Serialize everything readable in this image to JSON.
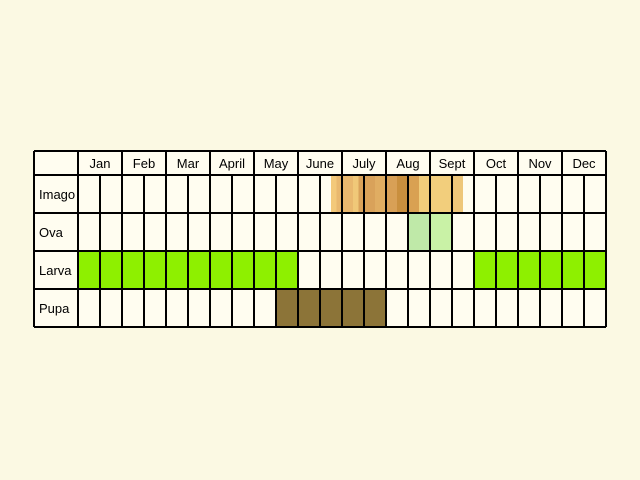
{
  "chart_data": {
    "type": "table",
    "months": [
      "Jan",
      "Feb",
      "Mar",
      "April",
      "May",
      "June",
      "July",
      "Aug",
      "Sept",
      "Oct",
      "Nov",
      "Dec"
    ],
    "half_month_columns": 24,
    "stages": [
      {
        "name": "Imago",
        "segments": [
          {
            "from": 11.5,
            "to": 11.75,
            "color": "#f3c97a"
          },
          {
            "from": 11.75,
            "to": 12.5,
            "color": "#e9b86e"
          },
          {
            "from": 12.5,
            "to": 12.75,
            "color": "#f0c878"
          },
          {
            "from": 12.75,
            "to": 13.5,
            "color": "#d9a25a"
          },
          {
            "from": 13.5,
            "to": 14.0,
            "color": "#e0ad62"
          },
          {
            "from": 14.0,
            "to": 14.5,
            "color": "#d8a056"
          },
          {
            "from": 14.5,
            "to": 15.0,
            "color": "#c98f3e"
          },
          {
            "from": 15.0,
            "to": 15.5,
            "color": "#d9a152"
          },
          {
            "from": 15.5,
            "to": 16.0,
            "color": "#f1cd7a"
          },
          {
            "from": 16.0,
            "to": 17.0,
            "color": "#f2ce7c"
          },
          {
            "from": 17.0,
            "to": 17.5,
            "color": "#eec77a"
          }
        ]
      },
      {
        "name": "Ova",
        "segments": [
          {
            "from": 15.0,
            "to": 16.0,
            "color": "#bfe9a8"
          },
          {
            "from": 16.0,
            "to": 17.0,
            "color": "#c9f2a6"
          }
        ]
      },
      {
        "name": "Larva",
        "segments": [
          {
            "from": 0,
            "to": 10.0,
            "color": "#8ef000"
          },
          {
            "from": 18.0,
            "to": 24.0,
            "color": "#8ef000"
          }
        ]
      },
      {
        "name": "Pupa",
        "segments": [
          {
            "from": 9.0,
            "to": 14.0,
            "color": "#8c7438"
          }
        ]
      }
    ],
    "colors": {
      "background": "#fbf9e3",
      "cell": "#fffdf0",
      "grid": "#000000"
    }
  }
}
